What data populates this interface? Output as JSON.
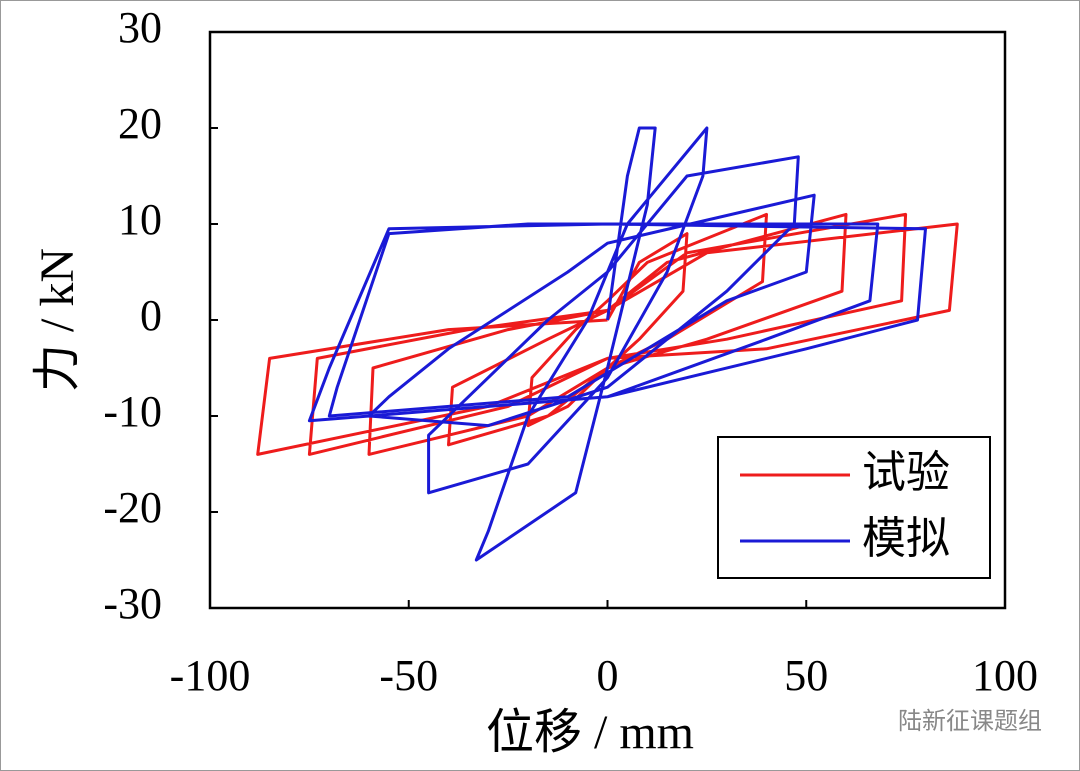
{
  "chart_data": {
    "type": "line",
    "xlabel": "位移 / mm",
    "ylabel": "力 / kN",
    "xlim": [
      -100,
      100
    ],
    "xticks": [
      -100,
      -50,
      0,
      50,
      100
    ],
    "ylim": [
      -30,
      30
    ],
    "yticks": [
      -30,
      -20,
      -10,
      0,
      10,
      20,
      30
    ],
    "legend": "lower right",
    "grid": false,
    "watermark": "陆新征课题组",
    "series": [
      {
        "name": "试验",
        "color": "#ee1c1c",
        "x": [
          0,
          8,
          20,
          19,
          8,
          0,
          -10,
          -20,
          -19,
          -8,
          0,
          10,
          40,
          39,
          15,
          0,
          -15,
          -40,
          -39,
          -15,
          0,
          15,
          60,
          59,
          25,
          0,
          -20,
          -60,
          -59,
          -25,
          0,
          20,
          75,
          74,
          30,
          0,
          -25,
          -75,
          -73,
          -35,
          0,
          25,
          88,
          86,
          40,
          0,
          -30,
          -88,
          -85,
          -40,
          0
        ],
        "values": [
          0,
          6,
          9,
          3,
          -2,
          -5,
          -9,
          -11,
          -6,
          -1,
          2,
          6,
          11,
          4,
          -2,
          -5,
          -10,
          -13,
          -7,
          -2,
          1,
          6,
          11,
          3,
          -2,
          -5,
          -10,
          -14,
          -5,
          -1,
          1,
          7,
          11,
          2,
          -2,
          -4,
          -9,
          -14,
          -4,
          -1,
          1,
          7,
          10,
          1,
          -3,
          -4,
          -9,
          -14,
          -4,
          -1,
          0
        ]
      },
      {
        "name": "模拟",
        "color": "#1a1ad6",
        "x": [
          0,
          5,
          8,
          12,
          10,
          0,
          -8,
          -33,
          -30,
          -20,
          -5,
          5,
          25,
          24,
          15,
          0,
          -20,
          -45,
          -45,
          -35,
          -15,
          0,
          20,
          48,
          47,
          30,
          0,
          -30,
          -60,
          -55,
          -40,
          -10,
          0,
          52,
          50,
          30,
          -10,
          -70,
          -68,
          -55,
          -20,
          0,
          68,
          66,
          40,
          0,
          -75,
          -70,
          -55,
          0,
          80,
          78,
          50,
          0
        ],
        "values": [
          0,
          15,
          20,
          20,
          12,
          -5,
          -18,
          -25,
          -22,
          -10,
          0,
          10,
          20,
          15,
          5,
          -6,
          -15,
          -18,
          -12,
          -8,
          0,
          5,
          15,
          17,
          10,
          3,
          -7,
          -11,
          -10,
          -8,
          -3,
          5,
          8,
          13,
          5,
          2,
          -8,
          -10,
          -7,
          9,
          10,
          10,
          10,
          2,
          -2,
          -8,
          -10.5,
          -5,
          9.5,
          10,
          9.5,
          0,
          -3,
          -8
        ]
      }
    ]
  }
}
